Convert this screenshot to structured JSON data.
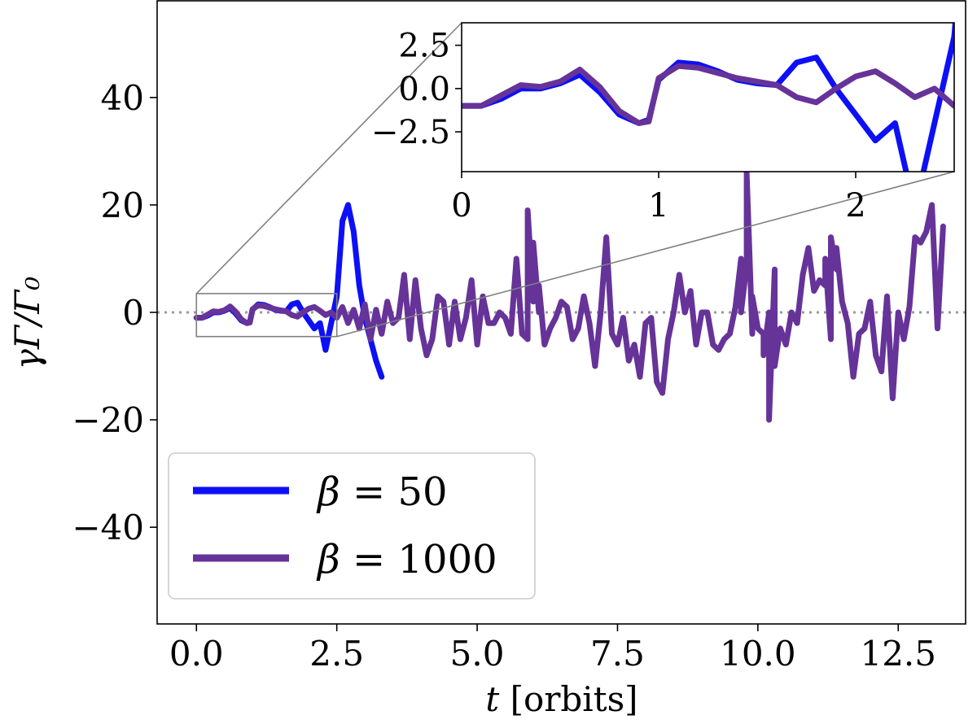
{
  "chart_data": [
    {
      "type": "line",
      "xlabel_var": "t",
      "xlabel_rest": " [orbits]",
      "ylabel": "γΓ/Γ₀",
      "xlim": [
        -0.7,
        13.7
      ],
      "ylim": [
        -58,
        58
      ],
      "xticks": [
        0.0,
        2.5,
        5.0,
        7.5,
        10.0,
        12.5
      ],
      "xtick_labels": [
        "0.0",
        "2.5",
        "5.0",
        "7.5",
        "10.0",
        "12.5"
      ],
      "yticks": [
        -40,
        -20,
        0,
        20,
        40
      ],
      "ytick_labels": [
        "−40",
        "−20",
        "0",
        "20",
        "40"
      ],
      "reference_line": {
        "y": 0,
        "style": "dotted",
        "color": "#999999"
      },
      "legend": {
        "placement": "lower-left"
      },
      "series": [
        {
          "name": "β = 50",
          "name_greek": "β",
          "name_value": " = 50",
          "color": "#0d10f5",
          "x": [
            0.0,
            0.1,
            0.2,
            0.3,
            0.4,
            0.5,
            0.6,
            0.7,
            0.8,
            0.9,
            0.95,
            1.0,
            1.1,
            1.2,
            1.3,
            1.4,
            1.5,
            1.6,
            1.7,
            1.8,
            1.9,
            2.0,
            2.1,
            2.2,
            2.3,
            2.4,
            2.5,
            2.6,
            2.7,
            2.8,
            2.9,
            3.0,
            3.1,
            3.2,
            3.3
          ],
          "y": [
            -1.0,
            -1.0,
            -0.6,
            0.0,
            0.0,
            0.3,
            0.8,
            -0.2,
            -1.5,
            -2.0,
            -1.8,
            0.5,
            1.5,
            1.4,
            1.0,
            0.5,
            0.3,
            0.2,
            1.5,
            1.8,
            0.0,
            -1.5,
            -3.0,
            -2.0,
            -7.0,
            -2.0,
            3.0,
            17.0,
            20.0,
            15.0,
            5.0,
            -1.0,
            -5.0,
            -9.0,
            -12.0
          ]
        },
        {
          "name": "β = 1000",
          "name_greek": "β",
          "name_value": " = 1000",
          "color": "#663399",
          "x": [
            0.0,
            0.1,
            0.2,
            0.3,
            0.4,
            0.5,
            0.6,
            0.7,
            0.8,
            0.9,
            0.95,
            1.0,
            1.1,
            1.2,
            1.3,
            1.4,
            1.5,
            1.6,
            1.7,
            1.8,
            1.9,
            2.0,
            2.1,
            2.2,
            2.3,
            2.4,
            2.5,
            2.6,
            2.7,
            2.8,
            2.9,
            3.0,
            3.1,
            3.2,
            3.3,
            3.4,
            3.5,
            3.6,
            3.7,
            3.8,
            3.9,
            4.0,
            4.1,
            4.2,
            4.3,
            4.4,
            4.5,
            4.6,
            4.7,
            4.8,
            4.9,
            5.0,
            5.1,
            5.2,
            5.3,
            5.4,
            5.5,
            5.6,
            5.7,
            5.8,
            5.9,
            6.0,
            6.1,
            6.2,
            6.3,
            6.4,
            6.5,
            6.6,
            6.7,
            6.8,
            6.9,
            7.0,
            7.1,
            7.2,
            7.3,
            7.4,
            7.5,
            7.6,
            7.7,
            7.8,
            7.9,
            8.0,
            8.1,
            8.2,
            8.3,
            8.4,
            8.5,
            8.6,
            8.7,
            8.8,
            8.9,
            9.0,
            9.1,
            9.2,
            9.3,
            9.4,
            9.5,
            9.6,
            9.7,
            9.8,
            9.9,
            10.0,
            10.1,
            10.2,
            10.3,
            10.4,
            10.5,
            10.6,
            10.7,
            10.8,
            10.9,
            11.0,
            11.1,
            11.2,
            11.3,
            11.4,
            11.5,
            11.6,
            11.7,
            11.8,
            11.9,
            12.0,
            12.1,
            12.2,
            12.3,
            12.4,
            12.5,
            12.6,
            12.7,
            12.8,
            12.9,
            13.0,
            13.1,
            13.2,
            13.3
          ],
          "y": [
            -1.0,
            -1.0,
            -0.4,
            0.2,
            0.1,
            0.4,
            1.1,
            0.1,
            -1.3,
            -2.0,
            -1.9,
            0.6,
            1.3,
            1.2,
            0.9,
            0.6,
            0.4,
            0.2,
            -0.5,
            -0.8,
            0.0,
            0.7,
            1.0,
            0.3,
            -0.5,
            0.0,
            -1.0,
            1.0,
            -2.0,
            0.5,
            -3.0,
            1.5,
            -5.0,
            0.5,
            -4.0,
            2.0,
            -2.0,
            -1.0,
            7.0,
            -5.0,
            6.0,
            -3.0,
            -8.0,
            -5.0,
            3.0,
            2.0,
            -6.0,
            2.0,
            -5.0,
            -1.0,
            6.0,
            -6.0,
            3.0,
            -2.0,
            -2.0,
            0.0,
            -1.0,
            -4.0,
            10.0,
            -4.0,
            -5.0,
            2.0,
            0.0,
            -6.0,
            -3.0,
            -1.0,
            2.0,
            1.0,
            -5.0,
            -3.0,
            3.0,
            -2.0,
            -10.0,
            0.0,
            14.0,
            -4.0,
            -6.0,
            -1.0,
            -9.0,
            -6.0,
            -12.0,
            -2.0,
            -1.0,
            -13.0,
            -15.0,
            -5.0,
            0.0,
            7.0,
            0.0,
            4.0,
            -6.0,
            0.0,
            0.0,
            -6.0,
            -7.0,
            -5.0,
            -4.0,
            1.0,
            10.0,
            9.0,
            -4.0,
            -3.0,
            -4.0,
            0.0,
            8.0,
            -3.0,
            -6.0,
            0.0,
            -2.0,
            7.0,
            12.0,
            4.0,
            6.0,
            5.0,
            -5.0,
            8.0,
            2.0,
            -2.0,
            -12.0,
            -4.0,
            -3.0,
            2.0,
            -8.0,
            -11.0,
            3.0,
            -16.0,
            0.0,
            -5.0,
            1.0,
            14.0,
            13.0,
            15.0,
            20.0,
            -3.0,
            16.0
          ],
          "x_extra": [
            5.9,
            6.0,
            6.1,
            9.7,
            9.8,
            9.9,
            10.1,
            10.2,
            10.3,
            11.2,
            11.3,
            11.4
          ],
          "y_extra": [
            19.0,
            13.0,
            5.0,
            0.0,
            26.0,
            3.0,
            -8.0,
            -20.0,
            -10.0,
            10.0,
            14.0,
            12.0
          ]
        }
      ],
      "inset": {
        "xlim": [
          0,
          2.5
        ],
        "ylim": [
          -4.8,
          3.8
        ],
        "xticks": [
          0,
          1,
          2
        ],
        "xtick_labels": [
          "0",
          "1",
          "2"
        ],
        "yticks": [
          2.5,
          0.0,
          -2.5
        ],
        "ytick_labels": [
          "2.5",
          "0.0",
          "−2.5"
        ],
        "zoom_region": {
          "x": [
            0,
            2.5
          ],
          "y": [
            -4.5,
            3.5
          ]
        }
      }
    }
  ]
}
